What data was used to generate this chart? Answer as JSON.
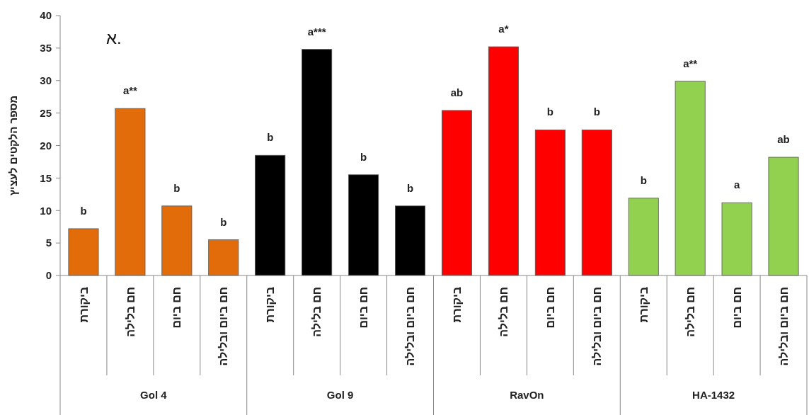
{
  "chart_data": {
    "type": "bar",
    "title": "א.",
    "ylabel": "מספר הלקטים לעציץ",
    "categories": [
      "ביקורת",
      "חם בלילה",
      "חם ביום",
      "חם ביום ובלילה",
      "ביקורת",
      "חם בלילה",
      "חם ביום",
      "חם ביום ובלילה",
      "ביקורת",
      "חם בלילה",
      "חם ביום",
      "חם ביום ובלילה",
      "ביקורת",
      "חם בלילה",
      "חם ביום",
      "חם ביום ובלילה"
    ],
    "values": [
      7.2,
      25.7,
      10.7,
      5.5,
      18.5,
      34.8,
      15.5,
      10.7,
      25.4,
      35.2,
      22.4,
      22.4,
      11.9,
      29.9,
      11.2,
      18.2
    ],
    "colors": [
      "#e36c0a",
      "#e36c0a",
      "#e36c0a",
      "#e36c0a",
      "#000000",
      "#000000",
      "#000000",
      "#000000",
      "#ff0000",
      "#ff0000",
      "#ff0000",
      "#ff0000",
      "#92d050",
      "#92d050",
      "#92d050",
      "#92d050"
    ],
    "value_labels": [
      "b",
      "a**",
      "b",
      "b",
      "b",
      "a***",
      "b",
      "b",
      "ab",
      "a*",
      "b",
      "b",
      "b",
      "a**",
      "a",
      "ab"
    ],
    "annotations": [
      "Gol 4",
      "Gol 9",
      "RavOn",
      "HA-1432"
    ],
    "ylim": [
      0,
      40
    ],
    "yticks": [
      0,
      5,
      10,
      15,
      20,
      25,
      30,
      35,
      40
    ]
  }
}
